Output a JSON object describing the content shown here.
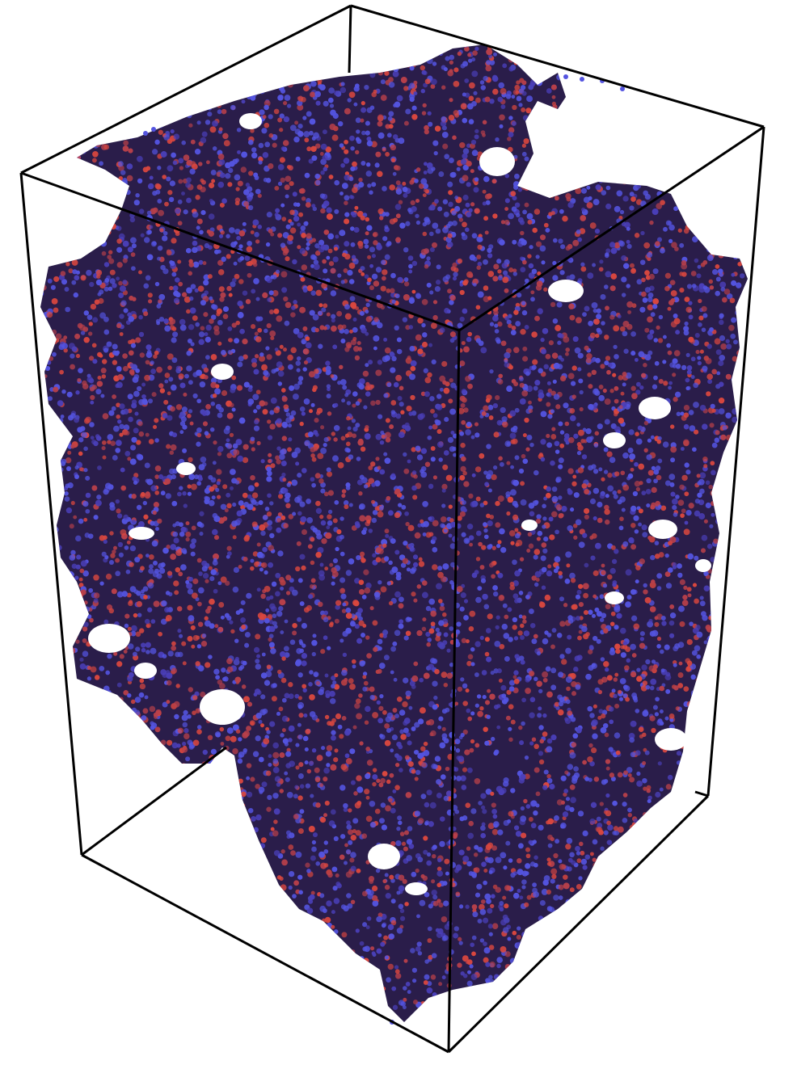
{
  "scene": {
    "kind": "3d-particle-simulation-render",
    "particle_colors": {
      "type_a": "#5454e0",
      "type_b": "#d9473f",
      "shadow": "#2a1d4a"
    },
    "box_edge_color": "#000000",
    "background": "#ffffff"
  }
}
